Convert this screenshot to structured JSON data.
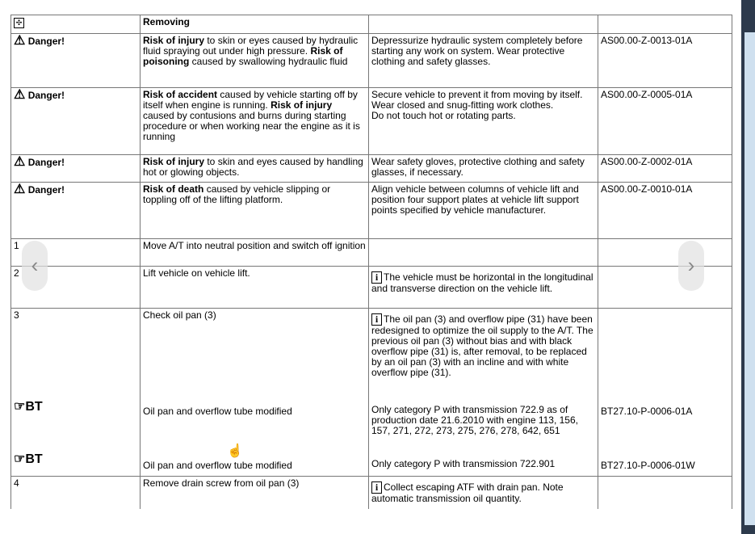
{
  "header": {
    "title": "Removing"
  },
  "warnings": [
    {
      "label": "Danger!",
      "parts": [
        {
          "b": "Risk of injury"
        },
        {
          "t": "  to skin or eyes caused by hydraulic fluid spraying out under high pressure. "
        },
        {
          "b": "Risk of poisoning"
        },
        {
          "t": "  caused by swallowing hydraulic fluid"
        }
      ],
      "measure": "Depressurize hydraulic system completely before starting any work on system. Wear protective clothing and safety glasses.",
      "code": "AS00.00-Z-0013-01A"
    },
    {
      "label": "Danger!",
      "parts": [
        {
          "b": "Risk of accident"
        },
        {
          "t": "  caused by vehicle starting off by itself when engine is running.  "
        },
        {
          "b": "Risk of injury"
        },
        {
          "t": " caused by contusions and burns during starting procedure or when working near the engine as it is running"
        }
      ],
      "measure": "Secure vehicle to prevent it from moving by itself.\nWear closed and snug-fitting work clothes.\nDo not touch hot or rotating parts.",
      "code": "AS00.00-Z-0005-01A"
    },
    {
      "label": "Danger!",
      "parts": [
        {
          "b": "Risk of injury"
        },
        {
          "t": "  to skin and eyes caused by handling hot or glowing objects."
        }
      ],
      "measure": "Wear safety gloves, protective clothing and safety glasses, if necessary.",
      "code": "AS00.00-Z-0002-01A"
    },
    {
      "label": "Danger!",
      "parts": [
        {
          "b": "Risk of death"
        },
        {
          "t": "  caused by vehicle slipping or toppling off of the lifting platform."
        }
      ],
      "measure": "Align vehicle between columns of vehicle lift and position four support plates  at vehicle lift support points specified by vehicle manufacturer.",
      "code": "AS00.00-Z-0010-01A"
    }
  ],
  "steps": [
    {
      "num": "1",
      "text": "Move A/T into neutral position and switch off ignition"
    },
    {
      "num": "2",
      "text": "Lift vehicle on vehicle lift.",
      "note": "The vehicle must be horizontal in the longitudinal and transverse direction on the vehicle lift."
    },
    {
      "num": "3",
      "text": "Check oil pan (3)",
      "note": "The oil pan (3) and overflow pipe (31) have been redesigned to optimize the oil supply to the A/T. The previous oil pan (3) without bias and with black overflow pipe (31) is, after removal, to be replaced by an oil pan (3) with an incline and with white overflow pipe (31)."
    },
    {
      "num": "4",
      "text": "Remove drain screw from oil pan (3)",
      "note": "Collect escaping ATF with drain pan. Note automatic transmission oil quantity."
    }
  ],
  "bt": [
    {
      "label": "BT",
      "text": "Oil pan and overflow tube modified",
      "desc": "Only category P with transmission 722.9 as of production date 21.6.2010 with engine 113, 156, 157, 271, 272, 273, 275, 276, 278, 642, 651",
      "code": "BT27.10-P-0006-01A"
    },
    {
      "label": "BT",
      "text": "Oil pan and overflow tube modified",
      "desc": "Only category P with transmission 722.901",
      "code": "BT27.10-P-0006-01W"
    }
  ],
  "nav": {
    "prev": "‹",
    "next": "›"
  }
}
